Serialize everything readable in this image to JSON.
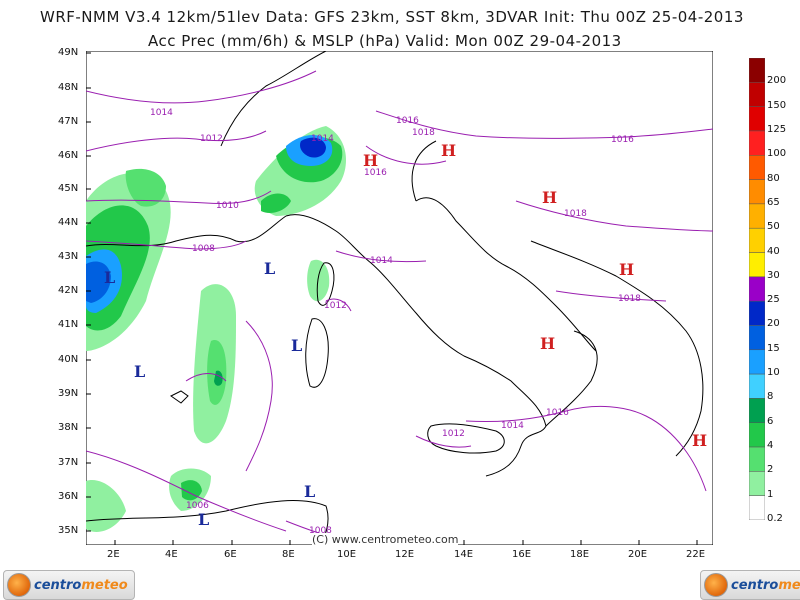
{
  "header": {
    "line1": "WRF-NMM V3.4 12km/51lev  Data: GFS 23km, SST 8km, 3DVAR  Init: Thu 00Z 25-04-2013",
    "line2": "Acc Prec (mm/6h) & MSLP (hPa)  Valid: Mon 00Z 29-04-2013"
  },
  "axes": {
    "lat_labels": [
      "49N",
      "48N",
      "47N",
      "46N",
      "45N",
      "44N",
      "43N",
      "42N",
      "41N",
      "40N",
      "39N",
      "38N",
      "37N",
      "36N",
      "35N"
    ],
    "lon_labels": [
      "2E",
      "4E",
      "6E",
      "8E",
      "10E",
      "12E",
      "14E",
      "16E",
      "18E",
      "20E",
      "22E"
    ]
  },
  "legend": {
    "levels": [
      "200",
      "150",
      "125",
      "100",
      "80",
      "65",
      "50",
      "40",
      "30",
      "25",
      "20",
      "15",
      "10",
      "8",
      "6",
      "4",
      "2",
      "1",
      "0.2"
    ],
    "colors": [
      "#8b0000",
      "#c00000",
      "#e00000",
      "#ff2020",
      "#ff5a00",
      "#ff8c00",
      "#ffb000",
      "#ffd000",
      "#ffee00",
      "#9a00c8",
      "#0028c8",
      "#0060e0",
      "#1aa0ff",
      "#40d0ff",
      "#00a050",
      "#22c84a",
      "#55e070",
      "#90f0a0",
      "#ffffff"
    ]
  },
  "isobars": {
    "labels": [
      "1014",
      "1012",
      "1010",
      "1008",
      "1014",
      "1016",
      "1018",
      "1016",
      "1016",
      "1018",
      "1018",
      "1014",
      "1012",
      "1016",
      "1014",
      "1012",
      "1006",
      "1008"
    ],
    "color": "#9a1fb0"
  },
  "pressure_centers": {
    "high": [
      "H",
      "H",
      "H",
      "H",
      "H",
      "H"
    ],
    "low": [
      "L",
      "L",
      "L",
      "L",
      "L",
      "L"
    ],
    "high_color": "#d02020",
    "low_color": "#1a2a9a"
  },
  "footer": {
    "copyright": "(C)  www.centrometeo.com",
    "logo_left_a": "centro",
    "logo_left_b": "meteo",
    "logo_right_a": "centro",
    "logo_right_b": "meteo"
  }
}
